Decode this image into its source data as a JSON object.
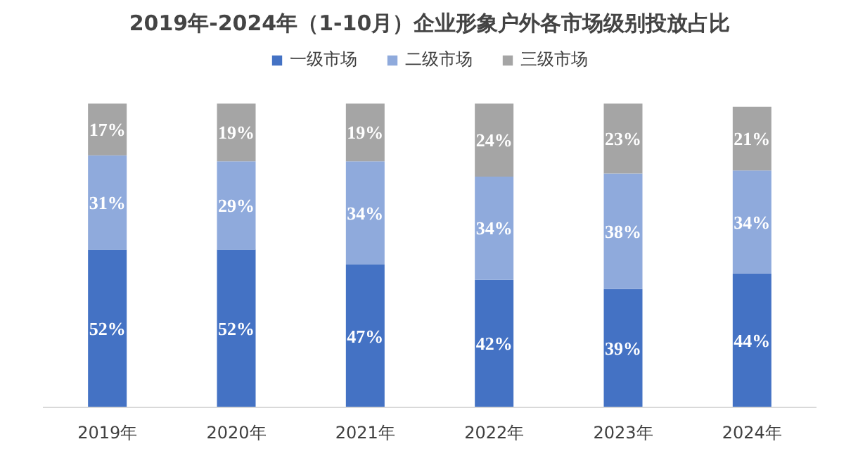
{
  "chart_data": {
    "type": "bar",
    "stacked": true,
    "title": "2019年-2024年（1-10月）企业形象户外各市场级别投放占比",
    "categories": [
      "2019年",
      "2020年",
      "2021年",
      "2022年",
      "2023年",
      "2024年"
    ],
    "series": [
      {
        "name": "一级市场",
        "color": "#4472c4",
        "values": [
          52,
          52,
          47,
          42,
          39,
          44
        ],
        "value_labels": [
          "52%",
          "52%",
          "47%",
          "42%",
          "39%",
          "44%"
        ]
      },
      {
        "name": "二级市场",
        "color": "#8faadc",
        "values": [
          31,
          29,
          34,
          34,
          38,
          34
        ],
        "value_labels": [
          "31%",
          "29%",
          "34%",
          "34%",
          "38%",
          "34%"
        ]
      },
      {
        "name": "三级市场",
        "color": "#a5a5a5",
        "values": [
          17,
          19,
          19,
          24,
          23,
          21
        ],
        "value_labels": [
          "17%",
          "19%",
          "19%",
          "24%",
          "23%",
          "21%"
        ]
      }
    ],
    "legend": "top",
    "grid": false,
    "tick_labels": "x"
  }
}
